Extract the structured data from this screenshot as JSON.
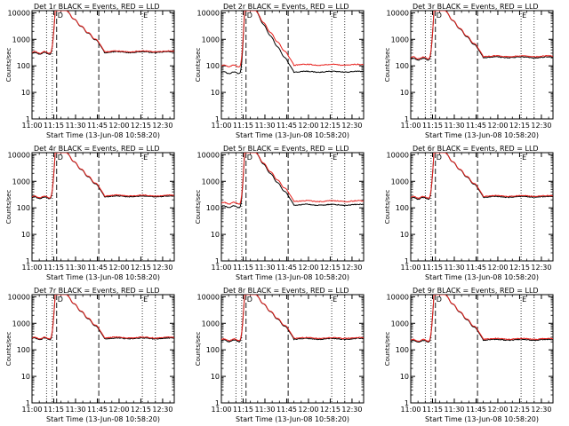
{
  "colors": {
    "events": "#000000",
    "lld": "#e8201c",
    "axis": "#000000"
  },
  "axis_common": {
    "xlabel": "Start Time (13-Jun-08 10:58:20)",
    "ylabel": "Counts/sec",
    "xticks": [
      "11:00",
      "11:15",
      "11:30",
      "11:45",
      "12:00",
      "12:15",
      "12:30"
    ],
    "xtick_minutes": [
      0,
      15,
      30,
      45,
      60,
      75,
      90
    ],
    "yticks": [
      "1",
      "10",
      "100",
      "1000",
      "10000"
    ],
    "ytick_values": [
      1,
      10,
      100,
      1000,
      10000
    ],
    "xlim_minutes": [
      0,
      98
    ],
    "ylim": [
      1,
      12000
    ],
    "dotted_lines_minutes": [
      10,
      14,
      76,
      85
    ],
    "dashed_lines_minutes": [
      17,
      46
    ],
    "marker_labels": [
      {
        "text": "D",
        "minute": 17
      },
      {
        "text": "E",
        "minute": 76
      }
    ]
  },
  "chart_data": [
    {
      "type": "line",
      "title": "Det 1r BLACK = Events, RED = LLD",
      "series": [
        {
          "name": "Events",
          "base": 300,
          "tail": 330,
          "peak": 12000
        },
        {
          "name": "LLD",
          "base": 320,
          "tail": 350,
          "peak": 12000
        }
      ]
    },
    {
      "type": "line",
      "title": "Det 2r BLACK = Events, RED = LLD",
      "series": [
        {
          "name": "Events",
          "base": 55,
          "tail": 60,
          "peak": 12000
        },
        {
          "name": "LLD",
          "base": 100,
          "tail": 110,
          "peak": 12000
        }
      ]
    },
    {
      "type": "line",
      "title": "Det 3r BLACK = Events, RED = LLD",
      "series": [
        {
          "name": "Events",
          "base": 180,
          "tail": 210,
          "peak": 12000
        },
        {
          "name": "LLD",
          "base": 200,
          "tail": 230,
          "peak": 12000
        }
      ]
    },
    {
      "type": "line",
      "title": "Det 4r BLACK = Events, RED = LLD",
      "series": [
        {
          "name": "Events",
          "base": 240,
          "tail": 270,
          "peak": 12000
        },
        {
          "name": "LLD",
          "base": 260,
          "tail": 290,
          "peak": 12000
        }
      ]
    },
    {
      "type": "line",
      "title": "Det 5r BLACK = Events, RED = LLD",
      "series": [
        {
          "name": "Events",
          "base": 110,
          "tail": 130,
          "peak": 12000
        },
        {
          "name": "LLD",
          "base": 150,
          "tail": 180,
          "peak": 12000
        }
      ]
    },
    {
      "type": "line",
      "title": "Det 6r BLACK = Events, RED = LLD",
      "series": [
        {
          "name": "Events",
          "base": 230,
          "tail": 260,
          "peak": 12000
        },
        {
          "name": "LLD",
          "base": 250,
          "tail": 280,
          "peak": 12000
        }
      ]
    },
    {
      "type": "line",
      "title": "Det 7r BLACK = Events, RED = LLD",
      "series": [
        {
          "name": "Events",
          "base": 260,
          "tail": 270,
          "peak": 12000
        },
        {
          "name": "LLD",
          "base": 280,
          "tail": 290,
          "peak": 12000
        }
      ]
    },
    {
      "type": "line",
      "title": "Det 8r BLACK = Events, RED = LLD",
      "series": [
        {
          "name": "Events",
          "base": 220,
          "tail": 260,
          "peak": 12000
        },
        {
          "name": "LLD",
          "base": 240,
          "tail": 280,
          "peak": 12000
        }
      ]
    },
    {
      "type": "line",
      "title": "Det 9r BLACK = Events, RED = LLD",
      "series": [
        {
          "name": "Events",
          "base": 210,
          "tail": 240,
          "peak": 12000
        },
        {
          "name": "LLD",
          "base": 230,
          "tail": 260,
          "peak": 12000
        }
      ]
    }
  ]
}
